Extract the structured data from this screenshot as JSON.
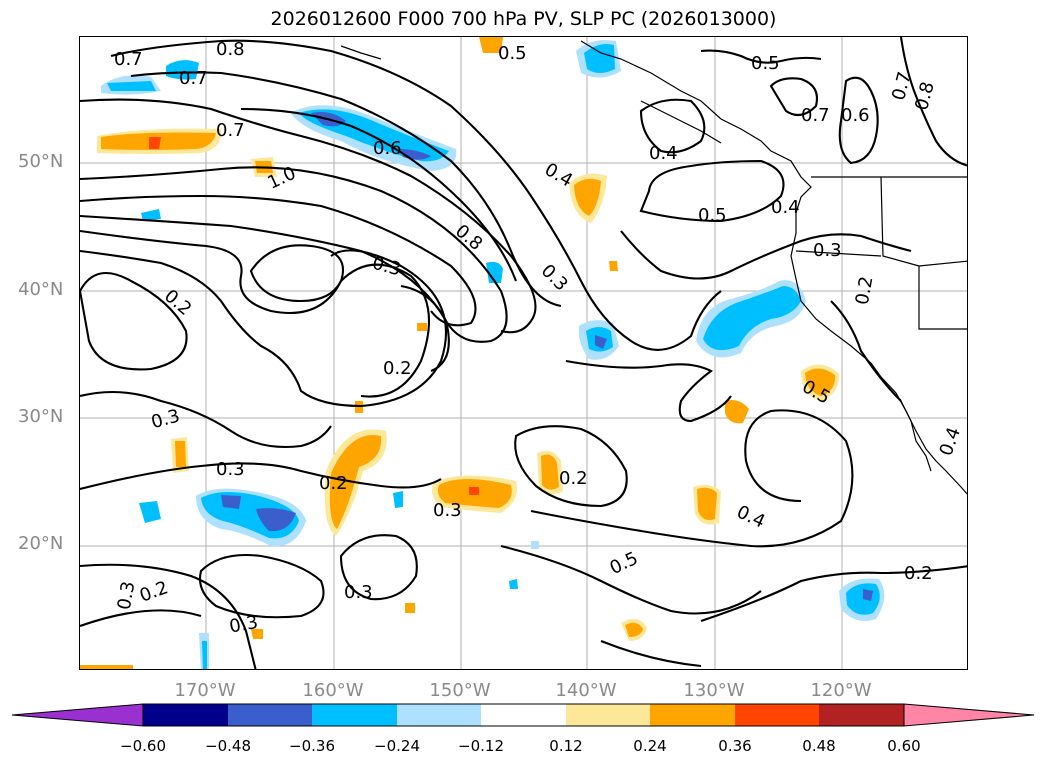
{
  "title": "2026012600 F000 700 hPa PV, SLP PC (2026013000)",
  "lat_labels": [
    "50°N",
    "40°N",
    "30°N",
    "20°N"
  ],
  "lon_labels": [
    "170°W",
    "160°W",
    "150°W",
    "140°W",
    "130°W",
    "120°W"
  ],
  "contour_labels": {
    "c07a": "0.7",
    "c08a": "0.8",
    "c07b": "0.7",
    "c05a": "0.5",
    "c05b": "0.5",
    "c07c": "0.7",
    "c06a": "0.6",
    "c07d": "0.7",
    "c08b": "0.8",
    "c06b": "0.6",
    "c10": "1.0",
    "c04a": "0.4",
    "c04b": "0.4",
    "c05c": "0.5",
    "c04c": "0.4",
    "c08c": "0.8",
    "c03a": "0.3",
    "c03b": "0.3",
    "c03c": "0.3",
    "c02a": "0.2",
    "c02b": "0.2",
    "c05d": "0.5",
    "c02c": "0.2",
    "c03d": "0.3",
    "c02d": "0.2",
    "c03e": "0.3",
    "c02e": "0.2",
    "c03f": "0.3",
    "c04d": "0.4",
    "c03g": "0.3",
    "c02f": "0.2",
    "c03h": "0.3",
    "c05e": "0.5",
    "c02g": "0.2",
    "c04e": "0.4"
  },
  "colorbar": {
    "colors": [
      "#9b30d0",
      "#00008b",
      "#3a5fcd",
      "#00bfff",
      "#aee0ff",
      "#ffffff",
      "#fde89a",
      "#ffa500",
      "#ff4500",
      "#b22222",
      "#ff85a7"
    ],
    "ticks": [
      "−0.60",
      "−0.48",
      "−0.36",
      "−0.24",
      "−0.12",
      "0.12",
      "0.24",
      "0.36",
      "0.48",
      "0.60"
    ]
  }
}
